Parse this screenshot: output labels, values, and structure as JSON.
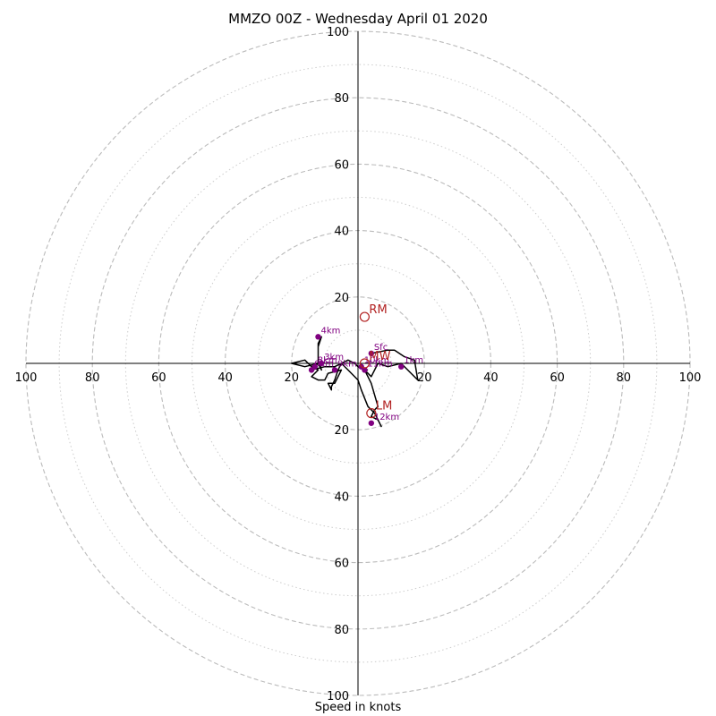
{
  "chart_data": {
    "type": "scatter",
    "subtype": "hodograph",
    "title": "MMZO 00Z - Wednesday April 01 2020",
    "xlabel": "Speed in knots",
    "ylabel": "",
    "xlim": [
      -100,
      100
    ],
    "ylim": [
      -100,
      100
    ],
    "rings": [
      20,
      40,
      60,
      80,
      100
    ],
    "minor_rings": [
      10,
      30,
      50,
      70,
      90
    ],
    "tick_labels": [
      "100",
      "80",
      "60",
      "40",
      "20"
    ],
    "hodograph_trace": {
      "color": "#000000",
      "points": [
        [
          4,
          3
        ],
        [
          9,
          4
        ],
        [
          11,
          4
        ],
        [
          14,
          2
        ],
        [
          17,
          1
        ],
        [
          18,
          -5
        ],
        [
          13,
          0
        ],
        [
          9,
          -1
        ],
        [
          6,
          0
        ],
        [
          4,
          -4
        ],
        [
          2,
          -2
        ],
        [
          4,
          -6
        ],
        [
          6,
          -13
        ],
        [
          5,
          -14
        ],
        [
          4,
          -16
        ],
        [
          6,
          -17
        ],
        [
          7,
          -19
        ],
        [
          5,
          -15
        ],
        [
          3,
          -13
        ],
        [
          1,
          -8
        ],
        [
          0,
          -5
        ],
        [
          -3,
          -2
        ],
        [
          -5,
          0
        ],
        [
          -6,
          -2
        ],
        [
          -7,
          -5
        ],
        [
          -8,
          -7
        ],
        [
          -8,
          -8
        ],
        [
          -9,
          -6
        ],
        [
          -7,
          -6
        ],
        [
          -5,
          -2
        ],
        [
          -9,
          -3
        ],
        [
          -10,
          -5
        ],
        [
          -12,
          -5
        ],
        [
          -14,
          -4
        ],
        [
          -12,
          -2
        ],
        [
          -14,
          -1
        ],
        [
          -16,
          1
        ],
        [
          -20,
          0
        ],
        [
          -16,
          -1
        ],
        [
          -12,
          0
        ],
        [
          -11,
          -2
        ],
        [
          -12,
          1
        ],
        [
          -12,
          6
        ],
        [
          -11,
          8
        ],
        [
          -12,
          5
        ],
        [
          -12,
          0
        ],
        [
          -14,
          -2
        ],
        [
          -10,
          -1
        ],
        [
          -7,
          -1
        ],
        [
          -5,
          0
        ],
        [
          -3,
          1
        ],
        [
          -1,
          0
        ],
        [
          0,
          -1
        ],
        [
          2,
          -2
        ],
        [
          3,
          -2
        ]
      ]
    },
    "height_markers": [
      {
        "label": "Sfc",
        "x": 4,
        "y": 3
      },
      {
        "label": "1km",
        "x": 13,
        "y": -1
      },
      {
        "label": "3km",
        "x": -11,
        "y": 0
      },
      {
        "label": "4km",
        "x": -12,
        "y": 8
      },
      {
        "label": "6km",
        "x": -14,
        "y": -2
      },
      {
        "label": "8km",
        "x": -13,
        "y": -1
      },
      {
        "label": "9km",
        "x": -7,
        "y": -2
      },
      {
        "label": "10km",
        "x": 1,
        "y": -1
      },
      {
        "label": "11km",
        "x": 2,
        "y": -2
      },
      {
        "label": "12km",
        "x": 4,
        "y": -18
      }
    ],
    "storm_motion": [
      {
        "label": "RM",
        "x": 2,
        "y": 14
      },
      {
        "label": "MW",
        "x": 2,
        "y": 0
      },
      {
        "label": "LM",
        "x": 4,
        "y": -15
      }
    ],
    "colors": {
      "trace": "#000000",
      "height_marker": "#800080",
      "storm_motion": "#b22222",
      "ring_major": "#bbbbbb",
      "ring_minor": "#cccccc"
    },
    "grid": true
  }
}
